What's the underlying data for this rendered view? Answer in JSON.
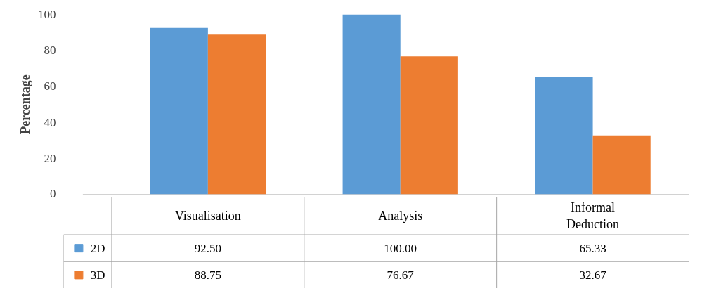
{
  "chart_data": {
    "type": "bar",
    "ylabel": "Percentage",
    "categories": [
      "Visualisation",
      "Analysis",
      "Informal Deduction"
    ],
    "series": [
      {
        "name": "2D",
        "color": "#5b9bd5",
        "values": [
          92.5,
          100.0,
          65.33
        ],
        "value_labels": [
          "92.50",
          "100.00",
          "65.33"
        ]
      },
      {
        "name": "3D",
        "color": "#ed7d31",
        "values": [
          88.75,
          76.67,
          32.67
        ],
        "value_labels": [
          "88.75",
          "76.67",
          "32.67"
        ]
      }
    ],
    "ylim": [
      0,
      100
    ],
    "yticks": [
      0,
      20,
      40,
      60,
      80,
      100
    ],
    "grid": false,
    "legend": "bottom"
  }
}
